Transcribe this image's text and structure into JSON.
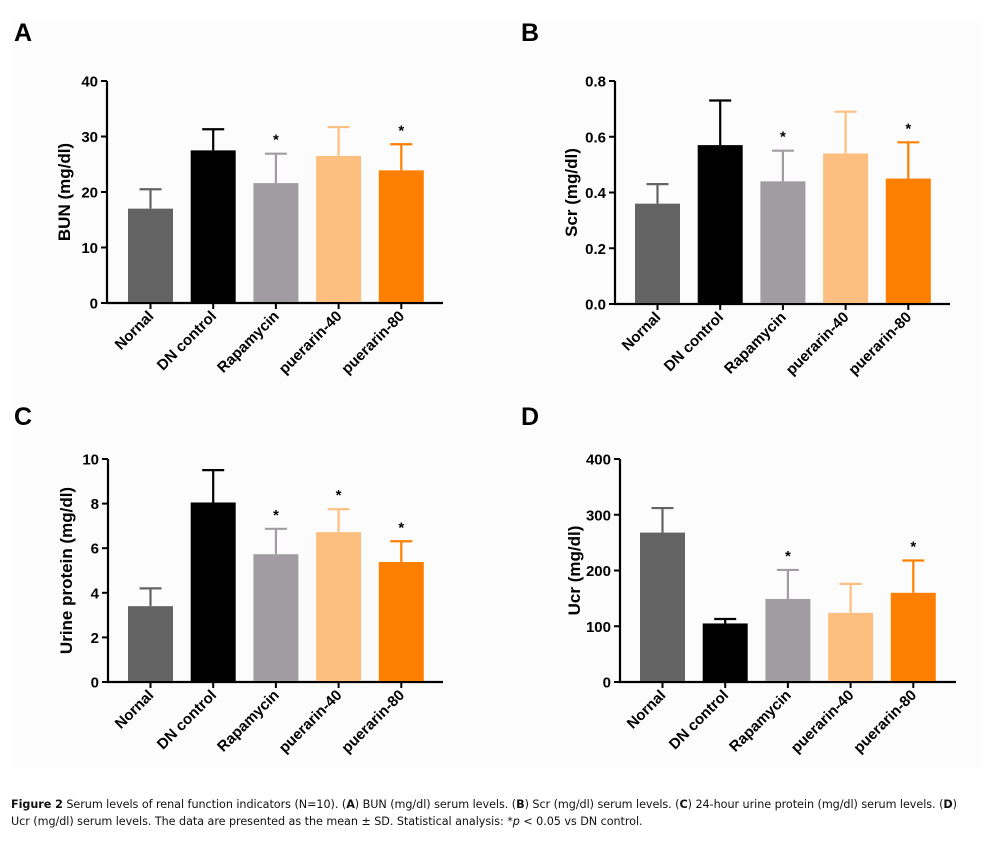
{
  "chart_data": [
    {
      "panel": "A",
      "type": "bar",
      "title": "",
      "xlabel": "",
      "ylabel": "BUN (mg/dl)",
      "ylim": [
        0,
        40
      ],
      "yticks": [
        0,
        10,
        20,
        30,
        40
      ],
      "ytick_labels": [
        "0",
        "10",
        "20",
        "30",
        "40"
      ],
      "categories": [
        "Nornal",
        "DN control",
        "Rapamycin",
        "puerarin-40",
        "puerarin-80"
      ],
      "values": [
        17.0,
        27.5,
        21.6,
        26.5,
        23.9
      ],
      "error_sd": [
        3.5,
        3.8,
        5.3,
        5.2,
        4.7
      ],
      "significance": [
        "",
        "",
        "*",
        "",
        "*"
      ],
      "colors": [
        "#636363",
        "#000000",
        "#a09ca1",
        "#fdbf7f",
        "#fd7f00"
      ],
      "grid": false,
      "legend": "none"
    },
    {
      "panel": "B",
      "type": "bar",
      "title": "",
      "xlabel": "",
      "ylabel": "Scr (mg/dl)",
      "ylim": [
        0,
        0.8
      ],
      "yticks": [
        0,
        0.2,
        0.4,
        0.6,
        0.8
      ],
      "ytick_labels": [
        "0.0",
        "0.2",
        "0.4",
        "0.6",
        "0.8"
      ],
      "categories": [
        "Nornal",
        "DN control",
        "Rapamycin",
        "puerarin-40",
        "puerarin-80"
      ],
      "values": [
        0.36,
        0.57,
        0.44,
        0.54,
        0.45
      ],
      "error_sd": [
        0.07,
        0.16,
        0.11,
        0.15,
        0.13
      ],
      "significance": [
        "",
        "",
        "*",
        "",
        "*"
      ],
      "colors": [
        "#636363",
        "#000000",
        "#a09ca1",
        "#fdbf7f",
        "#fd7f00"
      ],
      "grid": false,
      "legend": "none"
    },
    {
      "panel": "C",
      "type": "bar",
      "title": "",
      "xlabel": "",
      "ylabel": "Urine protein (mg/dl)",
      "ylim": [
        0,
        10
      ],
      "yticks": [
        0,
        2,
        4,
        6,
        8,
        10
      ],
      "ytick_labels": [
        "0",
        "2",
        "4",
        "6",
        "8",
        "10"
      ],
      "categories": [
        "Nornal",
        "DN control",
        "Rapamycin",
        "puerarin-40",
        "puerarin-80"
      ],
      "values": [
        3.4,
        8.05,
        5.73,
        6.72,
        5.38
      ],
      "error_sd": [
        0.8,
        1.45,
        1.14,
        1.03,
        0.93
      ],
      "significance": [
        "",
        "",
        "*",
        "*",
        "*"
      ],
      "colors": [
        "#636363",
        "#000000",
        "#a09ca1",
        "#fdbf7f",
        "#fd7f00"
      ],
      "grid": false,
      "legend": "none"
    },
    {
      "panel": "D",
      "type": "bar",
      "title": "",
      "xlabel": "",
      "ylabel": "Ucr (mg/dl)",
      "ylim": [
        0,
        400
      ],
      "yticks": [
        0,
        100,
        200,
        300,
        400
      ],
      "ytick_labels": [
        "0",
        "100",
        "200",
        "300",
        "400"
      ],
      "categories": [
        "Nornal",
        "DN control",
        "Rapamycin",
        "puerarin-40",
        "puerarin-80"
      ],
      "values": [
        268,
        105,
        149,
        124,
        160
      ],
      "error_sd": [
        44,
        8,
        52,
        52,
        58
      ],
      "significance": [
        "",
        "",
        "*",
        "",
        "*"
      ],
      "colors": [
        "#636363",
        "#000000",
        "#a09ca1",
        "#fdbf7f",
        "#fd7f00"
      ],
      "grid": false,
      "legend": "none"
    }
  ],
  "panels": {
    "A": {
      "letter": "A"
    },
    "B": {
      "letter": "B"
    },
    "C": {
      "letter": "C"
    },
    "D": {
      "letter": "D"
    }
  },
  "caption": {
    "figure_label": "Figure 2",
    "line1_a": " Serum levels of renal function indicators (N=10). (",
    "ref_a": "A",
    "line1_b": ") BUN (mg/dl) serum levels. (",
    "ref_b": "B",
    "line1_c": ") Scr (mg/dl) serum levels. (",
    "ref_c": "C",
    "line1_d": ") 24-hour urine protein (mg/dl) serum levels. (",
    "ref_d": "D",
    "line1_e": ")",
    "line2_a": "Ucr (mg/dl) serum levels. The data are presented as the mean ± SD. Statistical analysis: *",
    "p_symbol": "p",
    "line2_b": " < 0.05 vs DN control."
  }
}
